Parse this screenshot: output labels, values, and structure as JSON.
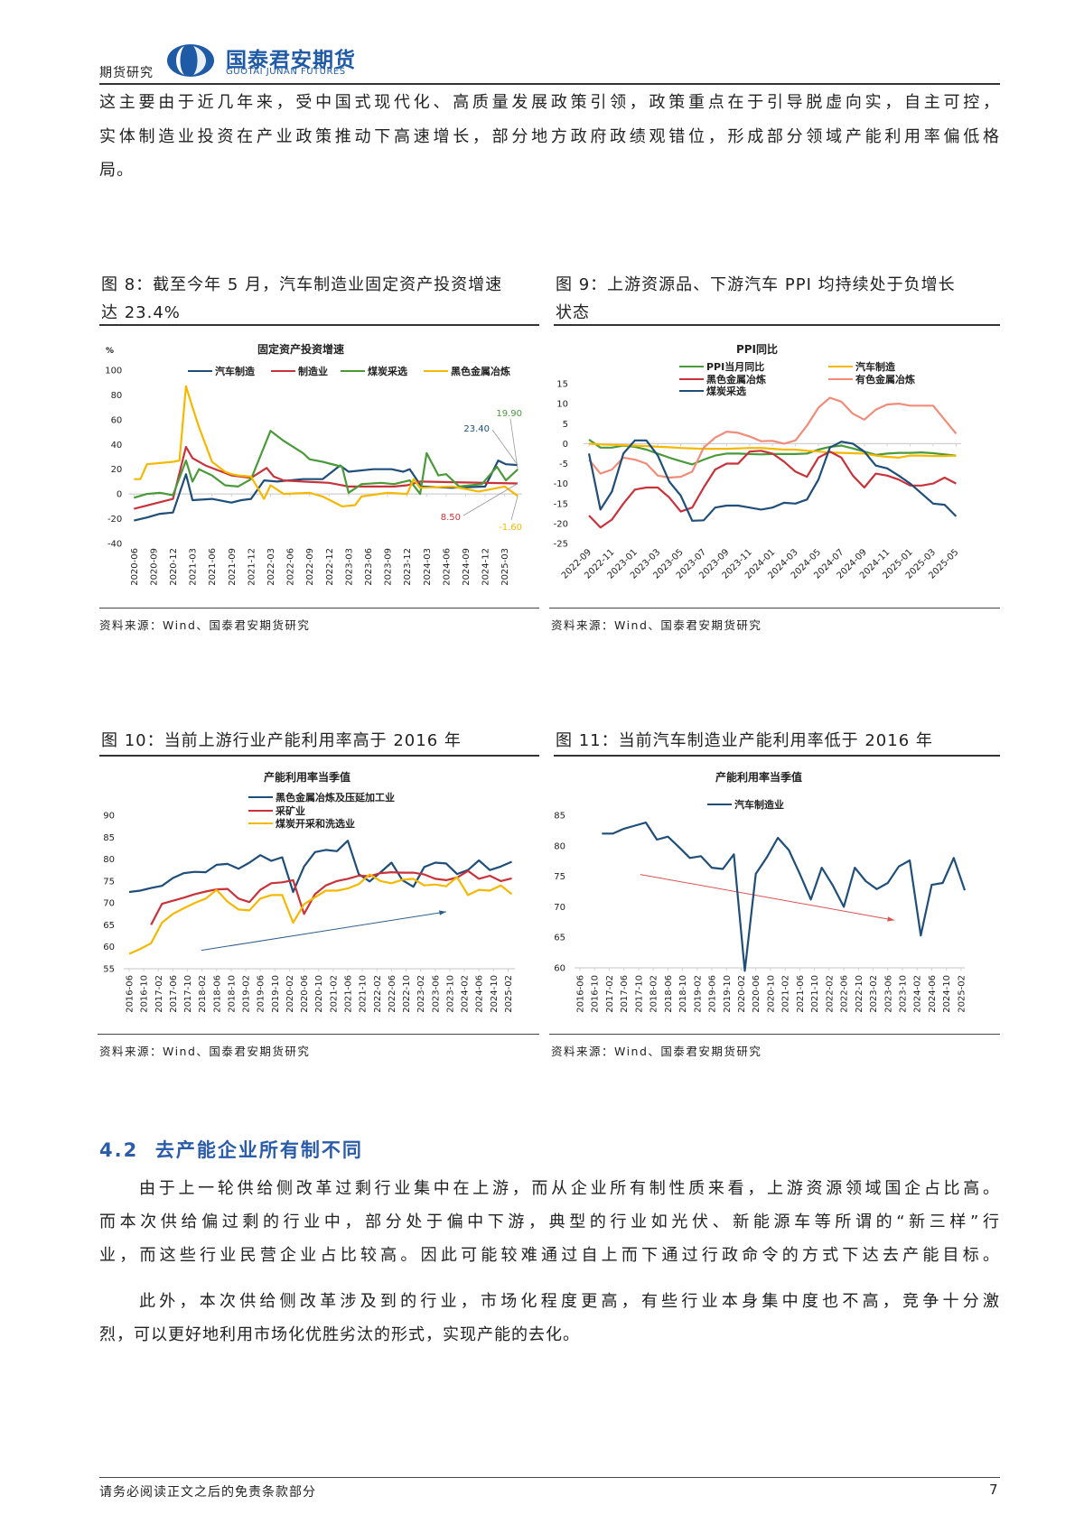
{
  "header": {
    "section": "期货研究",
    "logo_cn": "国泰君安期货",
    "logo_en": "GUOTAI JUNAN FUTURES",
    "brand_color": "#1f5aa6"
  },
  "intro": {
    "lines": [
      "这主要由于近几年来，受中国式现代化、高质量发展政策引领，政策重点在于引导脱虚向实，自主可控，",
      "实体制造业投资在产业政策推动下高速增长，部分地方政府政绩观错位，形成部分领域产能利用率偏低格",
      "局。"
    ]
  },
  "figures": {
    "fig8": {
      "caption_lines": [
        "图 8：截至今年 5 月，汽车制造业固定资产投资增速",
        "达 23.4%"
      ],
      "source": "资料来源：Wind、国泰君安期货研究"
    },
    "fig9": {
      "caption_lines": [
        "图 9：上游资源品、下游汽车 PPI 均持续处于负增长",
        "状态"
      ],
      "source": "资料来源：Wind、国泰君安期货研究"
    },
    "fig10": {
      "caption": "图 10：当前上游行业产能利用率高于 2016 年",
      "source": "资料来源：Wind、国泰君安期货研究"
    },
    "fig11": {
      "caption": "图 11：当前汽车制造业产能利用率低于 2016 年",
      "source": "资料来源：Wind、国泰君安期货研究"
    }
  },
  "section": {
    "title": "4.2  去产能企业所有制不同",
    "paragraphs": [
      [
        "由于上一轮供给侧改革过剩行业集中在上游，而从企业所有制性质来看，上游资源领域国企占比高。",
        "而本次供给偏过剩的行业中，部分处于偏中下游，典型的行业如光伏、新能源车等所谓的“新三样”行",
        "业，而这些行业民营企业占比较高。因此可能较难通过自上而下通过行政命令的方式下达去产能目标。"
      ],
      [
        "此外，本次供给侧改革涉及到的行业，市场化程度更高，有些行业本身集中度也不高，竞争十分激",
        "烈，可以更好地利用市场化优胜劣汰的形式，实现产能的去化。"
      ]
    ]
  },
  "footer": {
    "disclaimer": "请务必阅读正文之后的免责条款部分",
    "page": "7"
  },
  "chart_data": [
    {
      "type": "line",
      "title": "固定资产投资增速",
      "y_unit": "%",
      "ylim": [
        -40,
        100
      ],
      "grid": false,
      "yticks": [
        100,
        80,
        60,
        40,
        20,
        0,
        -20,
        -40
      ],
      "x_start": "2020-06",
      "x_unit": "month",
      "xtick_step": 3,
      "xtick_labels": [
        "2020-06",
        "2020-09",
        "2020-12",
        "2021-03",
        "2021-06",
        "2021-09",
        "2021-12",
        "2022-03",
        "2022-06",
        "2022-09",
        "2022-12",
        "2023-03",
        "2023-06",
        "2023-09",
        "2023-12",
        "2024-03",
        "2024-06",
        "2024-09",
        "2024-12",
        "2025-03"
      ],
      "legend_position": "top",
      "series": [
        {
          "name": "汽车制造",
          "color": "#1f4e79",
          "points": [
            [
              0,
              -21.5
            ],
            [
              2,
              -19
            ],
            [
              4,
              -16
            ],
            [
              6,
              -15
            ],
            [
              8,
              16
            ],
            [
              9,
              -5
            ],
            [
              12,
              -4
            ],
            [
              15,
              -7
            ],
            [
              16.5,
              -5
            ],
            [
              18,
              -4
            ],
            [
              20,
              11
            ],
            [
              22,
              10
            ],
            [
              26,
              12
            ],
            [
              29,
              12
            ],
            [
              31.7,
              23
            ],
            [
              33,
              18
            ],
            [
              36.8,
              20
            ],
            [
              39.6,
              20
            ],
            [
              41.4,
              18
            ],
            [
              42.4,
              20
            ],
            [
              44.2,
              6
            ],
            [
              48.8,
              5
            ],
            [
              54,
              6
            ],
            [
              56,
              27
            ],
            [
              57.2,
              24
            ],
            [
              59,
              23.4
            ]
          ]
        },
        {
          "name": "制造业",
          "color": "#c8323a",
          "points": [
            [
              0,
              -12
            ],
            [
              6,
              -4
            ],
            [
              8,
              38
            ],
            [
              9,
              29
            ],
            [
              11,
              23
            ],
            [
              13,
              19
            ],
            [
              15,
              15
            ],
            [
              18,
              13
            ],
            [
              20.4,
              21
            ],
            [
              21.5,
              14
            ],
            [
              23,
              11
            ],
            [
              26,
              10
            ],
            [
              30,
              9
            ],
            [
              33,
              6
            ],
            [
              40,
              6
            ],
            [
              42,
              7
            ],
            [
              44,
              10
            ],
            [
              59,
              8.5
            ]
          ]
        },
        {
          "name": "煤炭采选",
          "color": "#4a9a3a",
          "points": [
            [
              0,
              -3
            ],
            [
              2,
              0
            ],
            [
              4,
              1
            ],
            [
              6,
              -1
            ],
            [
              8,
              27
            ],
            [
              9,
              10
            ],
            [
              10,
              20
            ],
            [
              12,
              15
            ],
            [
              14,
              7
            ],
            [
              16,
              6
            ],
            [
              18,
              12
            ],
            [
              21,
              51
            ],
            [
              23,
              43
            ],
            [
              26,
              33
            ],
            [
              27,
              28
            ],
            [
              29,
              26
            ],
            [
              32,
              22
            ],
            [
              33,
              1
            ],
            [
              35,
              8
            ],
            [
              38,
              9
            ],
            [
              40,
              8
            ],
            [
              42.4,
              11
            ],
            [
              44,
              0
            ],
            [
              45,
              33
            ],
            [
              46.8,
              15
            ],
            [
              48,
              16
            ],
            [
              50,
              6
            ],
            [
              53.5,
              8
            ],
            [
              55.8,
              22
            ],
            [
              57.2,
              11
            ],
            [
              59,
              19.9
            ]
          ]
        },
        {
          "name": "黑色金属冶炼",
          "color": "#f5b800",
          "points": [
            [
              0,
              12
            ],
            [
              1,
              12
            ],
            [
              2,
              24
            ],
            [
              4,
              25
            ],
            [
              6,
              26
            ],
            [
              7,
              27
            ],
            [
              8,
              87
            ],
            [
              9,
              70
            ],
            [
              10,
              54
            ],
            [
              11,
              40
            ],
            [
              12,
              26
            ],
            [
              13,
              22
            ],
            [
              14,
              18
            ],
            [
              15,
              16
            ],
            [
              16,
              15
            ],
            [
              18,
              14
            ],
            [
              20,
              -4
            ],
            [
              21,
              7
            ],
            [
              23,
              0
            ],
            [
              27,
              1
            ],
            [
              29,
              -2
            ],
            [
              32,
              -10
            ],
            [
              34,
              -9
            ],
            [
              35,
              -2
            ],
            [
              39,
              1
            ],
            [
              42,
              0
            ],
            [
              43,
              12
            ],
            [
              44,
              5
            ],
            [
              49,
              6
            ],
            [
              53,
              2
            ],
            [
              57,
              6
            ],
            [
              59,
              -1.6
            ]
          ]
        }
      ],
      "annotations": [
        {
          "text": "23.40",
          "series": "汽车制造",
          "value": 23.4,
          "color": "#1f4e79"
        },
        {
          "text": "19.90",
          "series": "煤炭采选",
          "value": 19.9,
          "color": "#4a9a3a"
        },
        {
          "text": "8.50",
          "series": "制造业",
          "value": 8.5,
          "color": "#c8323a"
        },
        {
          "text": "-1.60",
          "series": "黑色金属冶炼",
          "value": -1.6,
          "color": "#f5b800"
        }
      ]
    },
    {
      "type": "line",
      "title": "PPI同比",
      "ylim": [
        -25,
        15
      ],
      "grid": false,
      "yticks": [
        15,
        10,
        5,
        0,
        -5,
        -10,
        -15,
        -20,
        -25
      ],
      "x_start": "2022-09",
      "x_unit": "month",
      "xtick_step": 2,
      "xtick_labels": [
        "2022-09",
        "2022-11",
        "2023-01",
        "2023-03",
        "2023-05",
        "2023-07",
        "2023-09",
        "2023-11",
        "2024-01",
        "2024-03",
        "2024-05",
        "2024-07",
        "2024-09",
        "2024-11",
        "2025-01",
        "2025-03",
        "2025-05"
      ],
      "legend_position": "top",
      "series": [
        {
          "name": "PPI当月同比",
          "color": "#4a9a3a",
          "values": [
            1,
            -1,
            -1,
            -0.5,
            -0.8,
            -1.5,
            -2.5,
            -3.5,
            -4.4,
            -5.2,
            -4,
            -3,
            -2.5,
            -2.5,
            -2.6,
            -2.7,
            -2.6,
            -2.6,
            -2.6,
            -2.5,
            -1.5,
            -0.8,
            -0.5,
            -1.2,
            -2,
            -2.8,
            -2.5,
            -2.3,
            -2.3,
            -2.2,
            -2.4,
            -2.7,
            -3
          ]
        },
        {
          "name": "汽车制造",
          "color": "#f5b800",
          "values": [
            0,
            -0.2,
            -0.3,
            -0.4,
            -0.5,
            -0.6,
            -0.8,
            -0.9,
            -1.1,
            -1.2,
            -1.3,
            -1.3,
            -1.3,
            -1.2,
            -1.1,
            -1.1,
            -1.3,
            -1.5,
            -1.5,
            -1.8,
            -2,
            -2.2,
            -2.3,
            -2.4,
            -2.5,
            -3,
            -3.3,
            -3.5,
            -3,
            -3,
            -3.1,
            -3.1,
            -3
          ]
        },
        {
          "name": "黑色金属冶炼",
          "color": "#c8323a",
          "values": [
            -18,
            -21,
            -19,
            -15,
            -11.5,
            -11,
            -11,
            -13.5,
            -17,
            -16,
            -11,
            -6.5,
            -5,
            -5,
            -2,
            -1.8,
            -2.5,
            -4.5,
            -7,
            -8.3,
            -3.5,
            -2,
            -3.5,
            -8,
            -11,
            -7.5,
            -8,
            -9,
            -10.5,
            -10.5,
            -10,
            -8.5,
            -10
          ]
        },
        {
          "name": "有色金属冶炼",
          "color": "#f08c78",
          "values": [
            -4,
            -7.5,
            -6.5,
            -3.5,
            -4,
            -5,
            -8,
            -8.5,
            -8.3,
            -7,
            -1,
            1.5,
            3,
            2.7,
            1.8,
            0.6,
            0.7,
            0,
            0.8,
            4.5,
            9,
            11.5,
            10.5,
            7.5,
            6,
            8.5,
            9.8,
            10,
            9.5,
            9.5,
            9.5,
            6,
            2.5
          ]
        },
        {
          "name": "煤炭采选",
          "color": "#1f4e79",
          "values": [
            -2.5,
            -16.5,
            -12,
            -2.5,
            0.8,
            0.8,
            -3,
            -9.5,
            -13,
            -19.3,
            -19.2,
            -16,
            -15.5,
            -15.5,
            -16,
            -16.5,
            -16,
            -14.8,
            -15,
            -14,
            -9,
            -1,
            0.5,
            0,
            -2,
            -5.5,
            -6.2,
            -8,
            -10,
            -12.5,
            -15,
            -15.3,
            -18.2
          ]
        }
      ]
    },
    {
      "type": "line",
      "title": "产能利用率当季值",
      "ylim": [
        55,
        90
      ],
      "grid": false,
      "yticks": [
        90,
        85,
        80,
        75,
        70,
        65,
        60,
        55
      ],
      "x_start": "2016-06",
      "x_unit": "quarter",
      "xtick_step": 1.3333,
      "xtick_labels": [
        "2016-06",
        "2016-10",
        "2017-02",
        "2017-06",
        "2017-10",
        "2018-02",
        "2018-06",
        "2018-10",
        "2019-02",
        "2019-06",
        "2019-10",
        "2020-02",
        "2020-06",
        "2020-10",
        "2021-02",
        "2021-06",
        "2021-10",
        "2022-02",
        "2022-06",
        "2022-10",
        "2023-02",
        "2023-06",
        "2023-10",
        "2024-02",
        "2024-06",
        "2024-10",
        "2025-02"
      ],
      "legend_position": "top",
      "series": [
        {
          "name": "黑色金属冶炼及压延加工业",
          "color": "#1f4e79",
          "start": 0,
          "values": [
            72.5,
            72.8,
            73.4,
            73.9,
            75.7,
            76.8,
            77.1,
            77,
            78.7,
            78.9,
            77.8,
            79.2,
            80.9,
            79.6,
            80.4,
            72.5,
            78.3,
            81.6,
            82.1,
            81.8,
            84.2,
            76.6,
            74.9,
            77,
            79.2,
            75.2,
            73.7,
            78.2,
            79.2,
            79,
            76.6,
            77.5,
            79.7,
            77.5,
            78.3,
            79.4
          ]
        },
        {
          "name": "采矿业",
          "color": "#c8323a",
          "start": 2,
          "values": [
            65,
            69.8,
            70.5,
            71.2,
            72,
            72.6,
            73.1,
            73.2,
            71,
            70.2,
            73,
            74.5,
            74.7,
            75.2,
            67.5,
            72,
            74,
            75,
            75.5,
            76.2,
            76.1,
            76.8,
            77,
            76.9,
            76.9,
            76.5,
            75.5,
            75.2,
            75.8,
            77.3,
            75.5,
            76.2,
            75,
            75.6
          ]
        },
        {
          "name": "煤炭开采和洗选业",
          "color": "#f5b800",
          "start": 0,
          "values": [
            58.4,
            59.5,
            60.8,
            65.5,
            67.5,
            68.8,
            70,
            71,
            73,
            70.3,
            68.5,
            68.3,
            71,
            71.8,
            71.8,
            65.5,
            69.7,
            71.3,
            72.8,
            72.8,
            73.3,
            74.3,
            76.5,
            75,
            74.5,
            75.3,
            75.5,
            74,
            74.2,
            73.8,
            75.9,
            71.8,
            73,
            72.8,
            74,
            72
          ]
        }
      ],
      "trend_arrow": {
        "color": "#2e5f8a",
        "from": [
          6.6,
          59.2
        ],
        "to": [
          29,
          68
        ]
      }
    },
    {
      "type": "line",
      "title": "产能利用率当季值",
      "ylim": [
        60,
        85
      ],
      "grid": false,
      "yticks": [
        85,
        80,
        75,
        70,
        65,
        60
      ],
      "x_start": "2016-06",
      "x_unit": "quarter",
      "xtick_step": 1.3333,
      "xtick_labels": [
        "2016-06",
        "2016-10",
        "2017-02",
        "2017-06",
        "2017-10",
        "2018-02",
        "2018-06",
        "2018-10",
        "2019-02",
        "2019-06",
        "2019-10",
        "2020-02",
        "2020-06",
        "2020-10",
        "2021-02",
        "2021-06",
        "2021-10",
        "2022-02",
        "2022-06",
        "2022-10",
        "2023-02",
        "2023-06",
        "2023-10",
        "2024-02",
        "2024-06",
        "2024-10",
        "2025-02"
      ],
      "legend_position": "top",
      "series": [
        {
          "name": "汽车制造业",
          "color": "#1f4e79",
          "start": 2,
          "values": [
            82,
            82,
            82.8,
            83.3,
            83.8,
            81,
            81.5,
            79.8,
            78,
            78.3,
            76.4,
            76.2,
            78.6,
            59.5,
            75.4,
            78.1,
            81.3,
            79.3,
            75.4,
            71.2,
            76.4,
            73.5,
            70,
            76.4,
            74.2,
            72.9,
            73.9,
            76.6,
            77.6,
            65.3,
            73.6,
            73.9,
            78,
            72.7
          ]
        }
      ],
      "trend_arrow": {
        "color": "#d9534f",
        "from": [
          5.5,
          75.3
        ],
        "to": [
          28.6,
          67.8
        ]
      }
    }
  ]
}
